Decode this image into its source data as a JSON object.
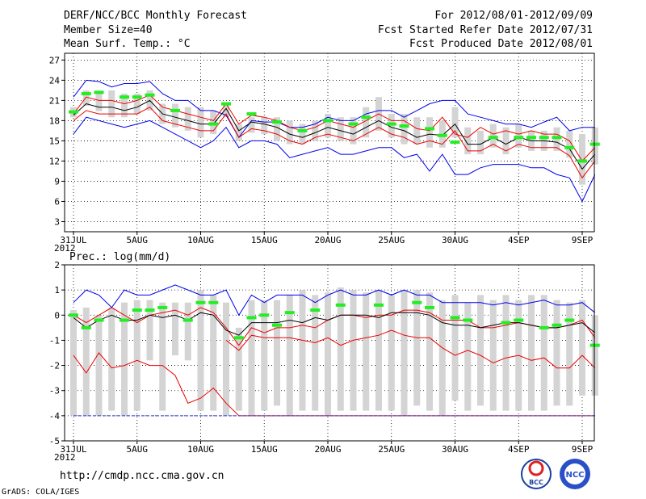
{
  "header": {
    "title": "DERF/NCC/BCC Monthly Forecast",
    "member_size": "Member Size=40",
    "variable": "Mean Surf. Temp.: °C",
    "period": "For 2012/08/01-2012/09/09",
    "started": "Fcst Started Refer Date 2012/07/31",
    "produced": "Fcst Produced Date 2012/08/01"
  },
  "footer": {
    "url": "http://cmdp.ncc.cma.gov.cn",
    "grads": "GrADS: COLA/IGES",
    "logo_bcc": "BCC",
    "logo_ncc": "NCC"
  },
  "colors": {
    "blue": "#0000ee",
    "red": "#ee0000",
    "black": "#000000",
    "green": "#22ee22",
    "box": "#d4d4d4",
    "dashed": "#2233cc"
  },
  "chart_data": [
    {
      "type": "line",
      "title": "Mean Surf. Temp.: °C",
      "x_start_day": 0,
      "x_ticks": [
        {
          "day": 0,
          "label": "31JUL",
          "sub": "2012"
        },
        {
          "day": 5,
          "label": "5AUG"
        },
        {
          "day": 10,
          "label": "10AUG"
        },
        {
          "day": 15,
          "label": "15AUG"
        },
        {
          "day": 20,
          "label": "20AUG"
        },
        {
          "day": 25,
          "label": "25AUG"
        },
        {
          "day": 30,
          "label": "30AUG"
        },
        {
          "day": 35,
          "label": "4SEP"
        },
        {
          "day": 40,
          "label": "9SEP"
        }
      ],
      "ylim": [
        1.5,
        28
      ],
      "yticks": [
        3,
        6,
        9,
        12,
        15,
        18,
        21,
        24,
        27
      ],
      "series": [
        {
          "name": "max",
          "color": "blue",
          "values": [
            21.5,
            24,
            23.8,
            23,
            23.5,
            23.5,
            23.8,
            22,
            21,
            21,
            19.5,
            19.5,
            18.8,
            15.5,
            18,
            17.8,
            17.8,
            17,
            17,
            17.5,
            18.5,
            18,
            18,
            19,
            19.5,
            19.5,
            18.5,
            19.5,
            20.5,
            21,
            21,
            19,
            18.5,
            18,
            17.5,
            17.5,
            17,
            17.8,
            18.5,
            16.5,
            17,
            17
          ]
        },
        {
          "name": "upper",
          "color": "red",
          "values": [
            19,
            21.5,
            21,
            21,
            20.5,
            21,
            21.8,
            20,
            19.5,
            19,
            18.5,
            18,
            20.5,
            17.5,
            18.8,
            18.5,
            18,
            17,
            16.5,
            17,
            18,
            17.5,
            17,
            18,
            19,
            18,
            18,
            16.8,
            16.5,
            18.5,
            16,
            15.5,
            17,
            16,
            16.5,
            16,
            16.5,
            16,
            16,
            15,
            12,
            14
          ]
        },
        {
          "name": "mean",
          "color": "black",
          "values": [
            18.8,
            20.5,
            20,
            20,
            19.5,
            20,
            21,
            19,
            18.5,
            18,
            17.5,
            17.5,
            19.8,
            16.5,
            17.8,
            17.5,
            17,
            16,
            15.5,
            16.2,
            17,
            16.5,
            16,
            17,
            18,
            17,
            16.5,
            15.5,
            16,
            15.8,
            17.5,
            14.5,
            14.5,
            15.5,
            14.5,
            15.5,
            15,
            15,
            14.8,
            13.8,
            10.8,
            13
          ]
        },
        {
          "name": "lower",
          "color": "red",
          "values": [
            18,
            19.5,
            19,
            19,
            19,
            19,
            20,
            18,
            17.5,
            17,
            16.5,
            16.5,
            19,
            15.5,
            16.8,
            16.5,
            16,
            15,
            14.5,
            15.5,
            16,
            15.5,
            15,
            16,
            17,
            16,
            15.5,
            14.5,
            15,
            14.5,
            16.5,
            13.5,
            13.5,
            14.5,
            13.5,
            14.5,
            14,
            14,
            14,
            12.8,
            9.5,
            12
          ]
        },
        {
          "name": "min",
          "color": "blue",
          "values": [
            16,
            18.5,
            18,
            17.5,
            17,
            17.5,
            18,
            17,
            16,
            15,
            14,
            15,
            17,
            14,
            15,
            15,
            14.5,
            12.5,
            13,
            13.5,
            14,
            13,
            13,
            13.5,
            14,
            14,
            12.5,
            13,
            10.5,
            13,
            10,
            10,
            11,
            11.5,
            11.5,
            11.5,
            11,
            11,
            10,
            9.5,
            6,
            10
          ]
        }
      ],
      "boxes_low": [
        18.5,
        20.2,
        19.4,
        18.5,
        18.5,
        19,
        19.5,
        17.5,
        17,
        16.5,
        15.5,
        16,
        18.5,
        15,
        16.2,
        16,
        15,
        14.5,
        14.5,
        15,
        15.5,
        15,
        14.5,
        15.5,
        16.5,
        15.5,
        14.5,
        14.5,
        14,
        14,
        15.5,
        13,
        13,
        14,
        13,
        14,
        13.5,
        13.5,
        13.5,
        12.5,
        8.5,
        11.5
      ],
      "boxes_high": [
        20,
        22.5,
        22.2,
        22.5,
        22,
        22,
        22.5,
        20.5,
        20.5,
        20,
        20,
        19.5,
        20.5,
        17.5,
        18.5,
        18.5,
        18.5,
        18,
        17.5,
        18,
        19,
        18.5,
        18.5,
        20,
        21.5,
        19,
        19,
        18.5,
        18.5,
        18,
        20,
        17,
        16.5,
        17.5,
        17,
        17.5,
        16.5,
        16.5,
        17,
        16.5,
        16,
        17
      ],
      "observed_marks": [
        {
          "day": 0,
          "value": 19.3
        },
        {
          "day": 1,
          "value": 22
        },
        {
          "day": 2,
          "value": 22.2
        },
        {
          "day": 4,
          "value": 21.5
        },
        {
          "day": 5,
          "value": 21.5
        },
        {
          "day": 6,
          "value": 21.8
        },
        {
          "day": 8,
          "value": 19.5
        },
        {
          "day": 11,
          "value": 17.5
        },
        {
          "day": 12,
          "value": 20.5
        },
        {
          "day": 14,
          "value": 19
        },
        {
          "day": 16,
          "value": 17.8
        },
        {
          "day": 18,
          "value": 16.5
        },
        {
          "day": 20,
          "value": 18
        },
        {
          "day": 22,
          "value": 17.5
        },
        {
          "day": 23,
          "value": 18.5
        },
        {
          "day": 25,
          "value": 17.5
        },
        {
          "day": 26,
          "value": 17.2
        },
        {
          "day": 28,
          "value": 16.8
        },
        {
          "day": 29,
          "value": 15.8
        },
        {
          "day": 30,
          "value": 14.8
        },
        {
          "day": 33,
          "value": 15.5
        },
        {
          "day": 35,
          "value": 15.5
        },
        {
          "day": 36,
          "value": 15.5
        },
        {
          "day": 37,
          "value": 15.5
        },
        {
          "day": 38,
          "value": 15.5
        },
        {
          "day": 39,
          "value": 14
        },
        {
          "day": 40,
          "value": 12
        },
        {
          "day": 41,
          "value": 14.5
        }
      ]
    },
    {
      "type": "line",
      "title": "Prec.: log(mm/d)",
      "x_ticks": [
        {
          "day": 0,
          "label": "31JUL",
          "sub": "2012"
        },
        {
          "day": 5,
          "label": "5AUG"
        },
        {
          "day": 10,
          "label": "10AUG"
        },
        {
          "day": 15,
          "label": "15AUG"
        },
        {
          "day": 20,
          "label": "20AUG"
        },
        {
          "day": 25,
          "label": "25AUG"
        },
        {
          "day": 30,
          "label": "30AUG"
        },
        {
          "day": 35,
          "label": "4SEP"
        },
        {
          "day": 40,
          "label": "9SEP"
        }
      ],
      "ylim": [
        -5,
        2
      ],
      "yticks": [
        -5,
        -4,
        -3,
        -2,
        -1,
        0,
        1,
        2
      ],
      "series": [
        {
          "name": "max",
          "color": "blue",
          "values": [
            0.5,
            1,
            0.8,
            0.3,
            1,
            0.8,
            0.8,
            1,
            1.2,
            1,
            0.8,
            0.8,
            1,
            0,
            0.8,
            0.5,
            0.8,
            0.8,
            0.8,
            0.5,
            0.8,
            1,
            0.8,
            0.8,
            1,
            0.8,
            1,
            0.8,
            0.8,
            0.5,
            0.5,
            0.5,
            0.5,
            0.4,
            0.5,
            0.4,
            0.5,
            0.6,
            0.4,
            0.4,
            0.5,
            0.1
          ]
        },
        {
          "name": "upper",
          "color": "red",
          "values": [
            0,
            -0.3,
            0,
            0.3,
            0,
            -0.3,
            0,
            0.1,
            0.2,
            0,
            0.3,
            0.1,
            -0.5,
            -1.2,
            -0.5,
            -0.7,
            -0.5,
            -0.5,
            -0.4,
            -0.5,
            -0.2,
            0,
            0,
            -0.1,
            0,
            0,
            0.2,
            0.2,
            0.1,
            -0.2,
            -0.2,
            -0.2,
            -0.5,
            -0.5,
            -0.4,
            -0.3,
            -0.4,
            -0.5,
            -0.5,
            -0.4,
            -0.2,
            -0.9
          ]
        },
        {
          "name": "mean",
          "color": "black",
          "values": [
            -0.1,
            -0.5,
            -0.2,
            0,
            -0.2,
            -0.2,
            0,
            -0.1,
            0,
            -0.2,
            0.1,
            0,
            -0.6,
            -0.8,
            -0.3,
            -0.3,
            -0.3,
            -0.2,
            -0.3,
            -0.1,
            -0.2,
            0,
            0,
            0,
            -0.1,
            0.1,
            0.1,
            0.1,
            0,
            -0.3,
            -0.4,
            -0.4,
            -0.5,
            -0.4,
            -0.3,
            -0.3,
            -0.4,
            -0.5,
            -0.5,
            -0.4,
            -0.3,
            -0.7
          ]
        },
        {
          "name": "lower",
          "color": "red",
          "values": [
            -1.6,
            -2.3,
            -1.5,
            -2.1,
            -2,
            -1.8,
            -2,
            -2,
            -2.4,
            -3.5,
            -3.3,
            -2.9,
            -3.5,
            -4,
            -4,
            -4,
            -4,
            -4,
            -4,
            -4,
            -4,
            -4,
            -4,
            -4,
            -4,
            -4,
            -4,
            -4,
            -4,
            -4,
            -4,
            -4,
            -4,
            -4,
            -4,
            -4,
            -4,
            -4,
            -4,
            -4,
            -4,
            -4
          ]
        },
        {
          "name": "lower_band2",
          "color": "red",
          "values": [
            null,
            null,
            null,
            null,
            null,
            null,
            null,
            null,
            null,
            null,
            null,
            null,
            -1,
            -1.4,
            -0.8,
            -0.9,
            -0.9,
            -0.9,
            -1,
            -1.1,
            -0.9,
            -1.2,
            -1,
            -0.9,
            -0.8,
            -0.6,
            -0.8,
            -0.9,
            -0.9,
            -1.3,
            -1.6,
            -1.4,
            -1.6,
            -1.9,
            -1.7,
            -1.6,
            -1.8,
            -1.7,
            -2.1,
            -2.1,
            -1.6,
            -2.1
          ]
        },
        {
          "name": "floor",
          "color": "dashed",
          "values": [
            -4,
            -4,
            -4,
            -4,
            -4,
            -4,
            -4,
            -4,
            -4,
            -4,
            -4,
            -4,
            -4,
            -4,
            -4,
            -4,
            -4,
            -4,
            -4,
            -4,
            -4,
            -4,
            -4,
            -4,
            -4,
            -4,
            -4,
            -4,
            -4,
            -4,
            -4,
            -4,
            -4,
            -4,
            -4,
            -4,
            -4,
            -4,
            -4,
            -4,
            -4,
            -4
          ]
        }
      ],
      "boxes_low": [
        -4,
        -4,
        -4,
        -3.8,
        -4,
        -3.8,
        -1.8,
        -3.8,
        -1.6,
        -1.8,
        -3.8,
        -3.8,
        -4,
        -3.8,
        -4,
        -3.8,
        -3.6,
        -4,
        -3.8,
        -3.8,
        -4,
        -3.8,
        -3.8,
        -3.8,
        -3.8,
        -3.8,
        -4,
        -3.6,
        -3.8,
        -4,
        -3.4,
        -3.8,
        -3.6,
        -3.8,
        -3.8,
        -3.8,
        -3.8,
        -3.8,
        -3.6,
        -3.6,
        -3.2,
        -3.2
      ],
      "boxes_high": [
        0.2,
        0.3,
        0,
        0.3,
        0.5,
        0.6,
        0.6,
        0.5,
        0.5,
        0.5,
        1,
        0.8,
        0.5,
        -0.5,
        0.6,
        0.6,
        0.6,
        0.8,
        1,
        0.8,
        0.9,
        1.1,
        1,
        0.9,
        1,
        0.8,
        1,
        1,
        0.9,
        0.6,
        0.8,
        0.5,
        0.8,
        0.6,
        0.8,
        0.6,
        0.8,
        0.8,
        0.6,
        0.5,
        0.6,
        0
      ],
      "observed_marks": [
        {
          "day": 0,
          "value": 0
        },
        {
          "day": 1,
          "value": -0.5
        },
        {
          "day": 2,
          "value": -0.2
        },
        {
          "day": 4,
          "value": -0.2
        },
        {
          "day": 5,
          "value": 0.2
        },
        {
          "day": 6,
          "value": 0.2
        },
        {
          "day": 7,
          "value": 0.3
        },
        {
          "day": 9,
          "value": -0.2
        },
        {
          "day": 10,
          "value": 0.5
        },
        {
          "day": 11,
          "value": 0.5
        },
        {
          "day": 13,
          "value": -0.9
        },
        {
          "day": 14,
          "value": -0.1
        },
        {
          "day": 15,
          "value": 0
        },
        {
          "day": 16,
          "value": -0.4
        },
        {
          "day": 17,
          "value": 0.1
        },
        {
          "day": 19,
          "value": 0.2
        },
        {
          "day": 21,
          "value": 0.4
        },
        {
          "day": 24,
          "value": 0.4
        },
        {
          "day": 27,
          "value": 0.5
        },
        {
          "day": 28,
          "value": 0.3
        },
        {
          "day": 30,
          "value": -0.1
        },
        {
          "day": 31,
          "value": -0.2
        },
        {
          "day": 34,
          "value": -0.3
        },
        {
          "day": 35,
          "value": -0.2
        },
        {
          "day": 37,
          "value": -0.5
        },
        {
          "day": 38,
          "value": -0.4
        },
        {
          "day": 39,
          "value": -0.2
        },
        {
          "day": 41,
          "value": -1.2
        }
      ]
    }
  ]
}
